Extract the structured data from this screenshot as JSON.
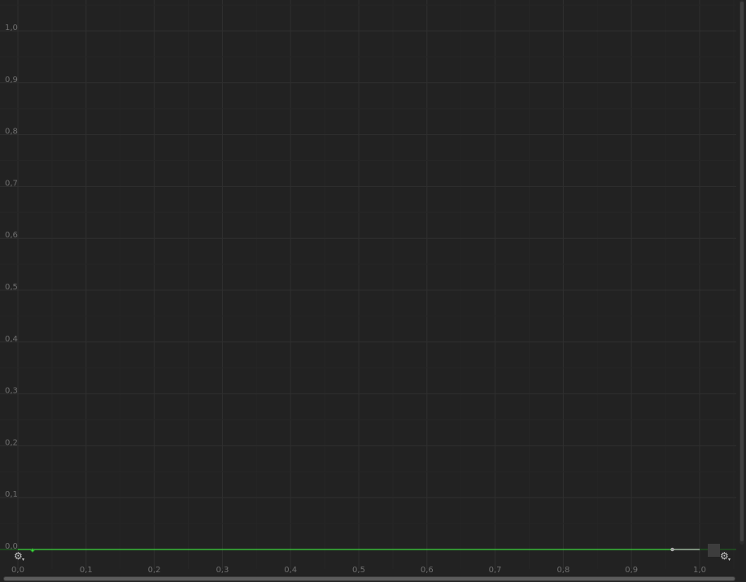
{
  "editor": {
    "gear_left": "gear-icon",
    "gear_right": "gear-icon"
  },
  "chart_data": {
    "type": "line",
    "x_ticks": [
      "0,0",
      "0,1",
      "0,2",
      "0,3",
      "0,4",
      "0,5",
      "0,6",
      "0,7",
      "0,8",
      "0,9",
      "1,0"
    ],
    "y_ticks": [
      "0,0",
      "0,1",
      "0,2",
      "0,3",
      "0,4",
      "0,5",
      "0,6",
      "0,7",
      "0,8",
      "0,9",
      "1,0"
    ],
    "xlim": [
      0,
      1.06
    ],
    "ylim": [
      0,
      1.05
    ],
    "grid": true,
    "series": [
      {
        "color": "#3cd63c",
        "x": [
          0,
          1
        ],
        "y": [
          0,
          0
        ]
      }
    ],
    "keyframes": [
      {
        "x": 0,
        "y": 0
      },
      {
        "x": 1,
        "y": 0
      }
    ],
    "tangent_handles": [
      {
        "x": 0.96,
        "y": 0
      }
    ]
  }
}
